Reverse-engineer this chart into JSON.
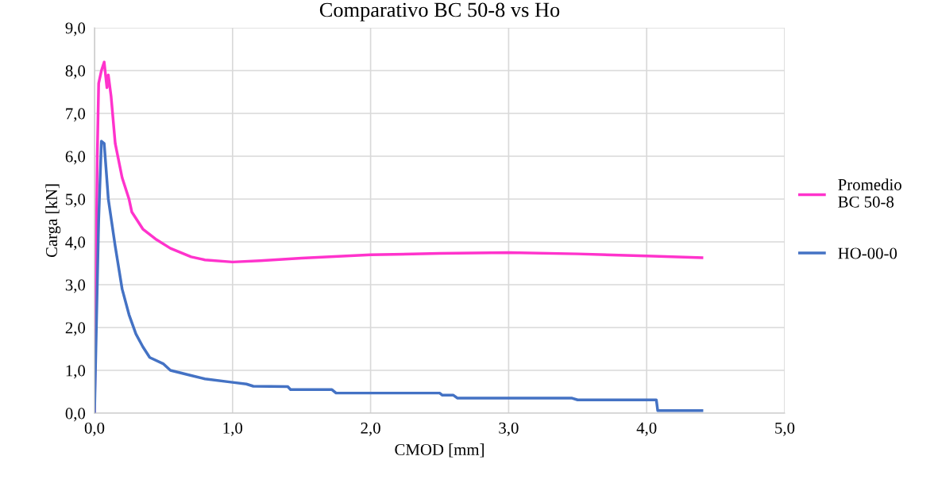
{
  "chart_data": {
    "type": "line",
    "title": "Comparativo BC 50-8 vs Ho",
    "xlabel": "CMOD [mm]",
    "ylabel": "Carga [kN]",
    "xlim": [
      0,
      5
    ],
    "xticks": [
      {
        "value": 0,
        "label": "0,0"
      },
      {
        "value": 1,
        "label": "1,0"
      },
      {
        "value": 2,
        "label": "2,0"
      },
      {
        "value": 3,
        "label": "3,0"
      },
      {
        "value": 4,
        "label": "4,0"
      },
      {
        "value": 5,
        "label": "5,0"
      }
    ],
    "ylim": [
      0,
      9
    ],
    "yticks": [
      {
        "value": 0,
        "label": "0,0"
      },
      {
        "value": 1,
        "label": "1,0"
      },
      {
        "value": 2,
        "label": "2,0"
      },
      {
        "value": 3,
        "label": "3,0"
      },
      {
        "value": 4,
        "label": "4,0"
      },
      {
        "value": 5,
        "label": "5,0"
      },
      {
        "value": 6,
        "label": "6,0"
      },
      {
        "value": 7,
        "label": "7,0"
      },
      {
        "value": 8,
        "label": "8,0"
      },
      {
        "value": 9,
        "label": "9,0"
      }
    ],
    "grid": true,
    "legend": "right",
    "marker": "none",
    "line_style": "solid",
    "series": [
      {
        "name": "Promedio\nBC 50-8",
        "color": "#ff33cc",
        "x": [
          0,
          0.01,
          0.02,
          0.03,
          0.05,
          0.07,
          0.09,
          0.1,
          0.12,
          0.15,
          0.2,
          0.25,
          0.27,
          0.35,
          0.45,
          0.55,
          0.7,
          0.8,
          1.0,
          1.2,
          1.5,
          2.0,
          2.5,
          3.0,
          3.5,
          4.0,
          4.4
        ],
        "values": [
          0,
          3.0,
          6.0,
          7.7,
          8.0,
          8.2,
          7.6,
          7.9,
          7.4,
          6.3,
          5.5,
          5.0,
          4.7,
          4.3,
          4.05,
          3.85,
          3.65,
          3.58,
          3.53,
          3.56,
          3.62,
          3.7,
          3.73,
          3.75,
          3.72,
          3.67,
          3.63
        ]
      },
      {
        "name": "HO-00-0",
        "color": "#4472c4",
        "x": [
          0,
          0.03,
          0.05,
          0.07,
          0.1,
          0.15,
          0.2,
          0.25,
          0.3,
          0.35,
          0.4,
          0.5,
          0.55,
          0.7,
          0.8,
          1.0,
          1.1,
          1.15,
          1.4,
          1.42,
          1.72,
          1.75,
          2.5,
          2.52,
          2.6,
          2.63,
          3.46,
          3.5,
          4.07,
          4.08,
          4.4
        ],
        "values": [
          0,
          4.5,
          6.35,
          6.3,
          5.0,
          3.9,
          2.9,
          2.3,
          1.85,
          1.55,
          1.3,
          1.15,
          1.0,
          0.88,
          0.8,
          0.72,
          0.68,
          0.63,
          0.62,
          0.55,
          0.55,
          0.47,
          0.47,
          0.42,
          0.42,
          0.35,
          0.35,
          0.31,
          0.31,
          0.06,
          0.06
        ]
      }
    ]
  }
}
